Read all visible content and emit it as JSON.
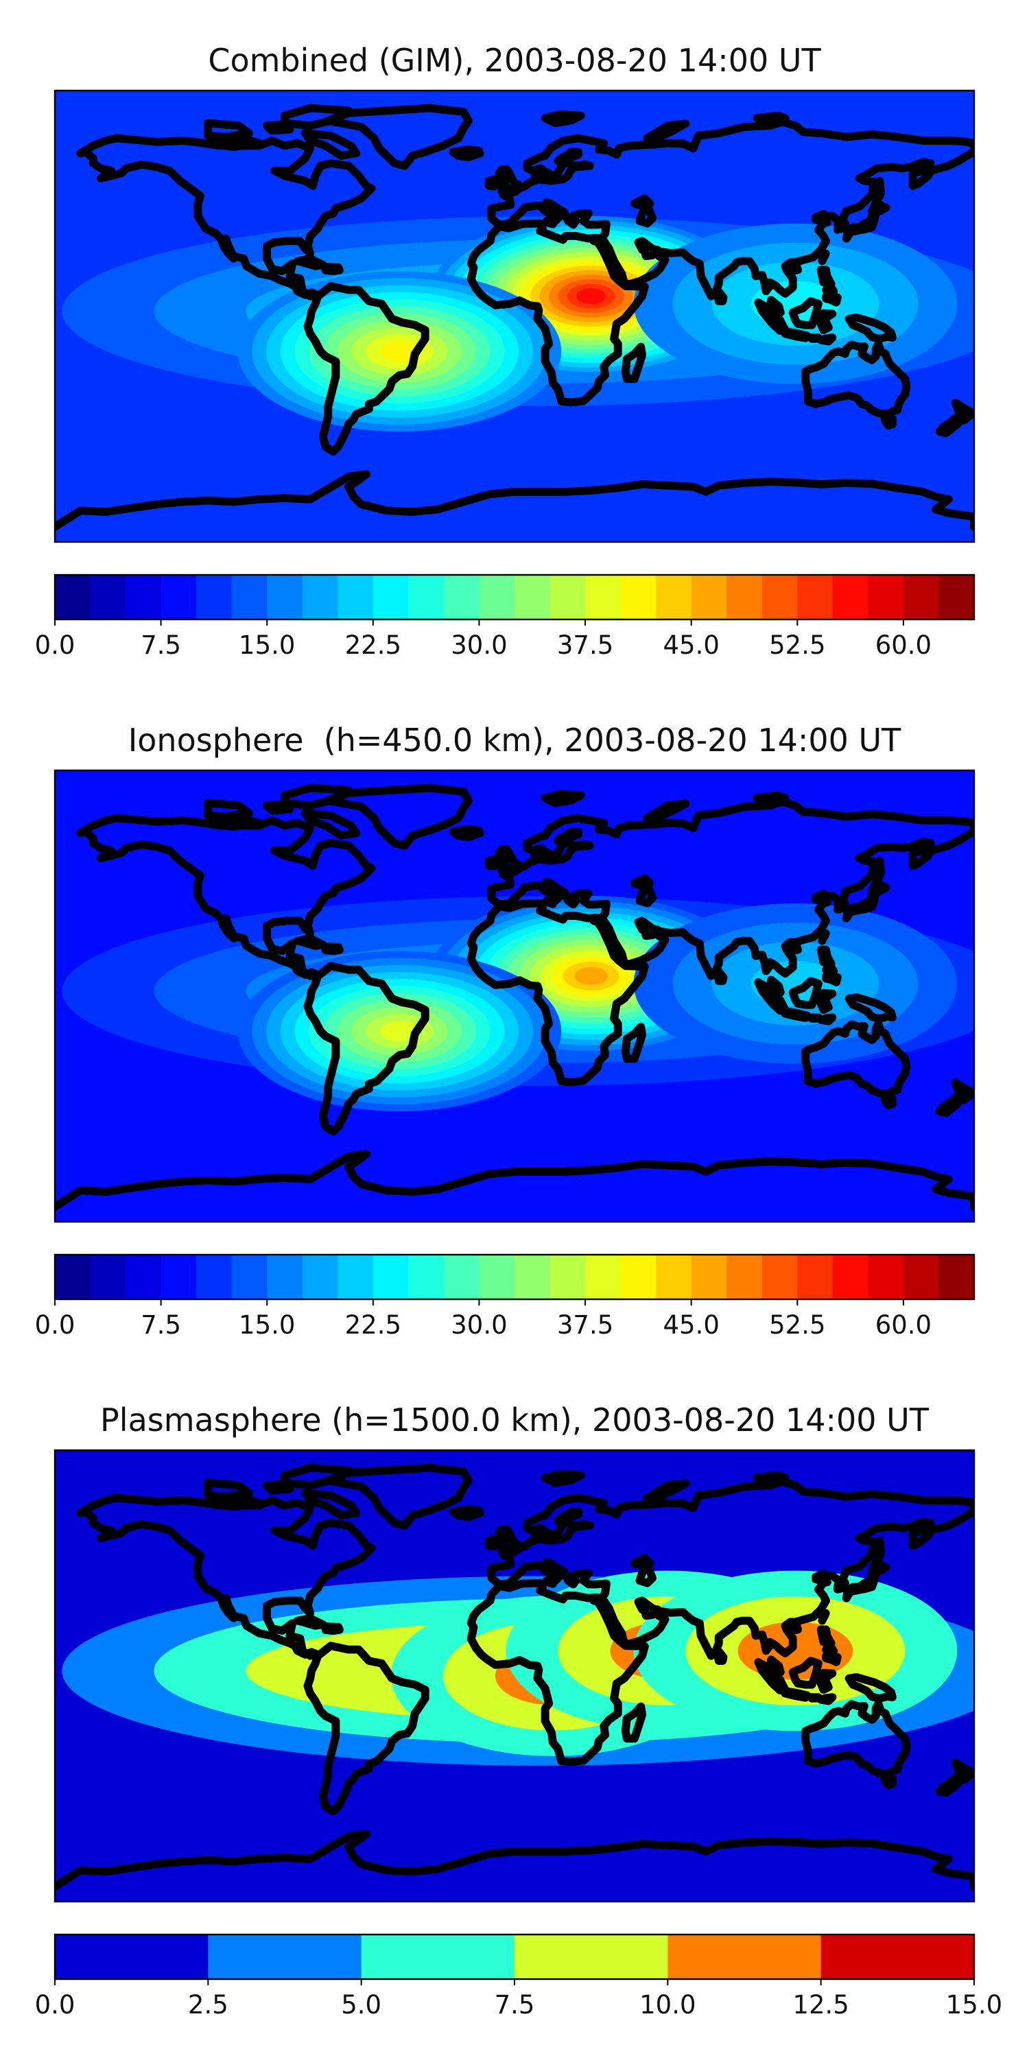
{
  "chart_data": [
    {
      "type": "heatmap",
      "title": "Combined (GIM), 2003-08-20 14:00 UT",
      "colorbar": {
        "min": 0,
        "max": 65,
        "step": 2.5,
        "ticks": [
          "0.0",
          "7.5",
          "15.0",
          "22.5",
          "30.0",
          "37.5",
          "45.0",
          "52.5",
          "60.0"
        ],
        "colormap": "jet"
      },
      "hotspots": [
        {
          "name": "africa-arabia crest",
          "lon": 30,
          "lat": 8,
          "peak_value": 57
        },
        {
          "name": "south-america crest",
          "lon": -45,
          "lat": -14,
          "peak_value": 40
        },
        {
          "name": "east-asia crest",
          "lon": 110,
          "lat": 5,
          "peak_value": 23
        }
      ],
      "background_value": 10
    },
    {
      "type": "heatmap",
      "title": "Ionosphere  (h=450.0 km), 2003-08-20 14:00 UT",
      "colorbar": {
        "min": 0,
        "max": 65,
        "step": 2.5,
        "ticks": [
          "0.0",
          "7.5",
          "15.0",
          "22.5",
          "30.0",
          "37.5",
          "45.0",
          "52.5",
          "60.0"
        ],
        "colormap": "jet"
      },
      "hotspots": [
        {
          "name": "africa-arabia crest",
          "lon": 30,
          "lat": 8,
          "peak_value": 47
        },
        {
          "name": "south-america crest",
          "lon": -45,
          "lat": -14,
          "peak_value": 38
        },
        {
          "name": "east-asia crest",
          "lon": 110,
          "lat": 5,
          "peak_value": 21
        }
      ],
      "background_value": 8
    },
    {
      "type": "heatmap",
      "title": "Plasmasphere (h=1500.0 km), 2003-08-20 14:00 UT",
      "colorbar": {
        "min": 0,
        "max": 15,
        "step": 2.5,
        "ticks": [
          "0.0",
          "2.5",
          "5.0",
          "7.5",
          "10.0",
          "12.5",
          "15.0"
        ],
        "colormap": "jet"
      },
      "hotspots": [
        {
          "name": "central africa",
          "lon": 15,
          "lat": 0,
          "peak_value": 11
        },
        {
          "name": "india",
          "lon": 60,
          "lat": 10,
          "peak_value": 11
        },
        {
          "name": "east asia",
          "lon": 110,
          "lat": 10,
          "peak_value": 10.5
        }
      ],
      "background_value": 2
    }
  ],
  "colors": {
    "jet": [
      "#00007f",
      "#0000ff",
      "#007fff",
      "#00ffff",
      "#7fff7f",
      "#ffff00",
      "#ff7f00",
      "#ff0000",
      "#7f0000"
    ],
    "coastline": "#000000"
  }
}
